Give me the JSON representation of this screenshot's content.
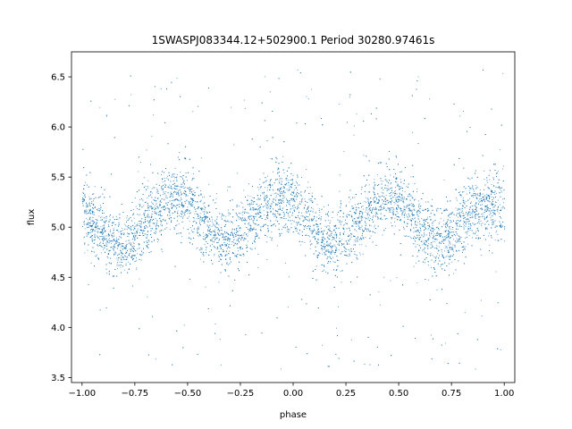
{
  "chart_data": {
    "type": "scatter",
    "title": "1SWASPJ083344.12+502900.1 Period 30280.97461s",
    "xlabel": "phase",
    "ylabel": "flux",
    "xlim": [
      -1.05,
      1.05
    ],
    "ylim": [
      3.45,
      6.75
    ],
    "x_ticks": [
      -1.0,
      -0.75,
      -0.5,
      -0.25,
      0.0,
      0.25,
      0.5,
      0.75,
      1.0
    ],
    "x_tick_labels": [
      "−1.00",
      "−0.75",
      "−0.50",
      "−0.25",
      "0.00",
      "0.25",
      "0.50",
      "0.75",
      "1.00"
    ],
    "y_ticks": [
      3.5,
      4.0,
      4.5,
      5.0,
      5.5,
      6.0,
      6.5
    ],
    "y_tick_labels": [
      "3.5",
      "4.0",
      "4.5",
      "5.0",
      "5.5",
      "6.0",
      "6.5"
    ],
    "grid": false,
    "marker_color": "#1f77b4",
    "series": [
      {
        "phase": [
          -1.0,
          -0.95,
          -0.9,
          -0.85,
          -0.8,
          -0.75,
          -0.7,
          -0.65,
          -0.6,
          -0.55,
          -0.5,
          -0.45,
          -0.4,
          -0.35,
          -0.3,
          -0.25,
          -0.2,
          -0.15,
          -0.1,
          -0.05,
          0.0,
          0.05,
          0.1,
          0.15,
          0.2,
          0.25,
          0.3,
          0.35,
          0.4,
          0.45,
          0.5,
          0.55,
          0.6,
          0.65,
          0.7,
          0.75,
          0.8,
          0.85,
          0.9,
          0.95,
          1.0
        ],
        "flux_center": [
          5.15,
          5.05,
          4.95,
          4.85,
          4.83,
          4.92,
          5.05,
          5.18,
          5.27,
          5.3,
          5.25,
          5.12,
          4.98,
          4.88,
          4.86,
          4.95,
          5.08,
          5.2,
          5.28,
          5.3,
          5.25,
          5.13,
          4.98,
          4.86,
          4.84,
          4.93,
          5.06,
          5.18,
          5.27,
          5.3,
          5.26,
          5.14,
          5.0,
          4.89,
          4.86,
          4.94,
          5.06,
          5.16,
          5.2,
          5.18,
          5.15
        ],
        "flux_spread": 0.3
      }
    ]
  }
}
